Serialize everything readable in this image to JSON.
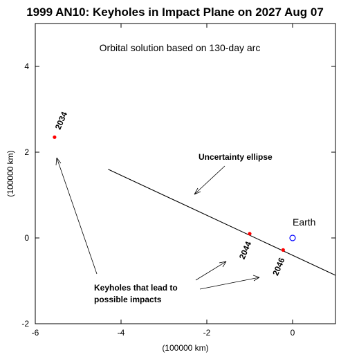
{
  "chart_data": {
    "type": "scatter",
    "title": "1999 AN10: Keyholes in Impact Plane on 2027 Aug 07",
    "subtitle": "Orbital solution based on 130-day arc",
    "xlabel": "(100000 km)",
    "ylabel": "(100000 km)",
    "xlim": [
      -6,
      1
    ],
    "ylim": [
      -2,
      5
    ],
    "x_ticks": [
      -6,
      -4,
      -2,
      0
    ],
    "y_ticks": [
      -2,
      0,
      2,
      4
    ],
    "grid": false,
    "uncertainty_ellipse": {
      "label": "Uncertainty ellipse",
      "points": [
        [
          -4.3,
          1.6
        ],
        [
          1.0,
          -0.87
        ]
      ]
    },
    "keyholes": [
      {
        "year": "2034",
        "x": -5.55,
        "y": 2.35,
        "color": "#ff0000"
      },
      {
        "year": "2044",
        "x": -1.0,
        "y": 0.1,
        "color": "#ff0000"
      },
      {
        "year": "2046",
        "x": -0.22,
        "y": -0.28,
        "color": "#ff0000"
      }
    ],
    "earth": {
      "label": "Earth",
      "x": 0,
      "y": 0,
      "color": "#0000ff"
    },
    "keyholes_note": {
      "line1": "Keyholes that lead to",
      "line2": "possible impacts"
    }
  }
}
